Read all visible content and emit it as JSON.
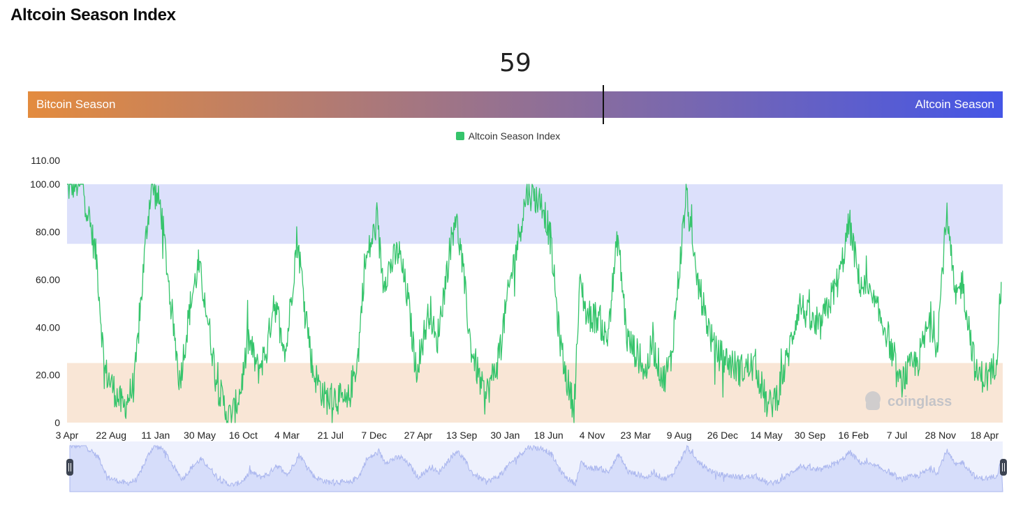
{
  "page": {
    "title": "Altcoin Season Index"
  },
  "gauge": {
    "value": 59,
    "value_text": "59",
    "left_label": "Bitcoin Season",
    "right_label": "Altcoin Season",
    "gradient_start": "#e38b3e",
    "gradient_end": "#4556e6"
  },
  "colors": {
    "line": "#35c46b",
    "altcoin_zone": "#dce0fb",
    "bitcoin_zone": "#f9e6d6",
    "navigator_fill": "#d6ddfa",
    "navigator_bg": "#eef1fd",
    "navigator_line": "#aab6ee"
  },
  "watermark": "coinglass",
  "chart_data": {
    "type": "line",
    "title": "",
    "xlabel": "",
    "ylabel": "",
    "ylim": [
      0,
      110
    ],
    "y_ticks": [
      "0",
      "20.00",
      "40.00",
      "60.00",
      "80.00",
      "100.00",
      "110.00"
    ],
    "y_tick_values": [
      0,
      20,
      40,
      60,
      80,
      100,
      110
    ],
    "x_tick_labels": [
      "3 Apr",
      "22 Aug",
      "11 Jan",
      "30 May",
      "16 Oct",
      "4 Mar",
      "21 Jul",
      "7 Dec",
      "27 Apr",
      "13 Sep",
      "30 Jan",
      "18 Jun",
      "4 Nov",
      "23 Mar",
      "9 Aug",
      "26 Dec",
      "14 May",
      "30 Sep",
      "16 Feb",
      "7 Jul",
      "28 Nov",
      "18 Apr"
    ],
    "x_tick_index": [
      0,
      141,
      283,
      424,
      563,
      703,
      842,
      981,
      1122,
      1261,
      1400,
      1539,
      1678,
      1817,
      1956,
      2095,
      2235,
      2374,
      2513,
      2652,
      2791,
      2932
    ],
    "bands": [
      {
        "from": 75,
        "to": 100,
        "label": "Altcoin Season zone"
      },
      {
        "from": 0,
        "to": 25,
        "label": "Bitcoin Season zone"
      }
    ],
    "legend": [
      "Altcoin Season Index"
    ],
    "series": [
      {
        "name": "Altcoin Season Index",
        "x_index": [
          0,
          20,
          50,
          95,
          120,
          150,
          180,
          215,
          255,
          270,
          300,
          330,
          360,
          395,
          420,
          440,
          480,
          515,
          535,
          555,
          580,
          610,
          640,
          660,
          700,
          735,
          760,
          785,
          825,
          860,
          895,
          930,
          950,
          990,
          1010,
          1035,
          1060,
          1090,
          1115,
          1160,
          1180,
          1210,
          1240,
          1260,
          1290,
          1335,
          1375,
          1420,
          1470,
          1520,
          1545,
          1570,
          1590,
          1620,
          1640,
          1660,
          1700,
          1725,
          1760,
          1790,
          1825,
          1850,
          1870,
          1905,
          1930,
          1980,
          2000,
          2040,
          2070,
          2110,
          2150,
          2200,
          2240,
          2270,
          2300,
          2340,
          2400,
          2470,
          2500,
          2530,
          2570,
          2620,
          2660,
          2690,
          2720,
          2760,
          2780,
          2810,
          2840,
          2860,
          2905,
          2950,
          2970,
          2985
        ],
        "values": [
          98,
          100,
          100,
          68,
          22,
          14,
          6,
          16,
          82,
          100,
          90,
          52,
          17,
          50,
          66,
          52,
          16,
          2,
          5,
          14,
          35,
          22,
          31,
          52,
          30,
          78,
          50,
          22,
          10,
          11,
          7,
          28,
          65,
          84,
          60,
          66,
          72,
          51,
          22,
          48,
          32,
          60,
          88,
          70,
          32,
          10,
          25,
          62,
          97,
          92,
          77,
          40,
          22,
          6,
          60,
          45,
          44,
          34,
          78,
          35,
          28,
          21,
          33,
          18,
          26,
          98,
          68,
          45,
          30,
          26,
          22,
          24,
          6,
          12,
          26,
          50,
          38,
          62,
          84,
          60,
          52,
          38,
          16,
          22,
          26,
          44,
          32,
          88,
          50,
          60,
          20,
          19,
          27,
          59
        ]
      }
    ]
  }
}
